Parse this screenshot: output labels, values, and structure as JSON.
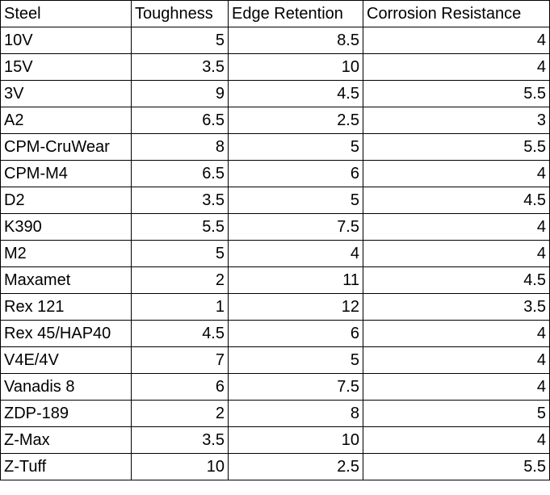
{
  "table": {
    "header": [
      "Steel",
      "Toughness",
      "Edge Retention",
      "Corrosion Resistance"
    ],
    "rows": [
      [
        "10V",
        5,
        8.5,
        4
      ],
      [
        "15V",
        3.5,
        10,
        4
      ],
      [
        "3V",
        9,
        4.5,
        5.5
      ],
      [
        "A2",
        6.5,
        2.5,
        3
      ],
      [
        "CPM-CruWear",
        8,
        5,
        5.5
      ],
      [
        "CPM-M4",
        6.5,
        6,
        4
      ],
      [
        "D2",
        3.5,
        5,
        4.5
      ],
      [
        "K390",
        5.5,
        7.5,
        4
      ],
      [
        "M2",
        5,
        4,
        4
      ],
      [
        "Maxamet",
        2,
        11,
        4.5
      ],
      [
        "Rex 121",
        1,
        12,
        3.5
      ],
      [
        "Rex 45/HAP40",
        4.5,
        6,
        4
      ],
      [
        "V4E/4V",
        7,
        5,
        4
      ],
      [
        "Vanadis 8",
        6,
        7.5,
        4
      ],
      [
        "ZDP-189",
        2,
        8,
        5
      ],
      [
        "Z-Max",
        3.5,
        10,
        4
      ],
      [
        "Z-Tuff",
        10,
        2.5,
        5.5
      ]
    ]
  }
}
